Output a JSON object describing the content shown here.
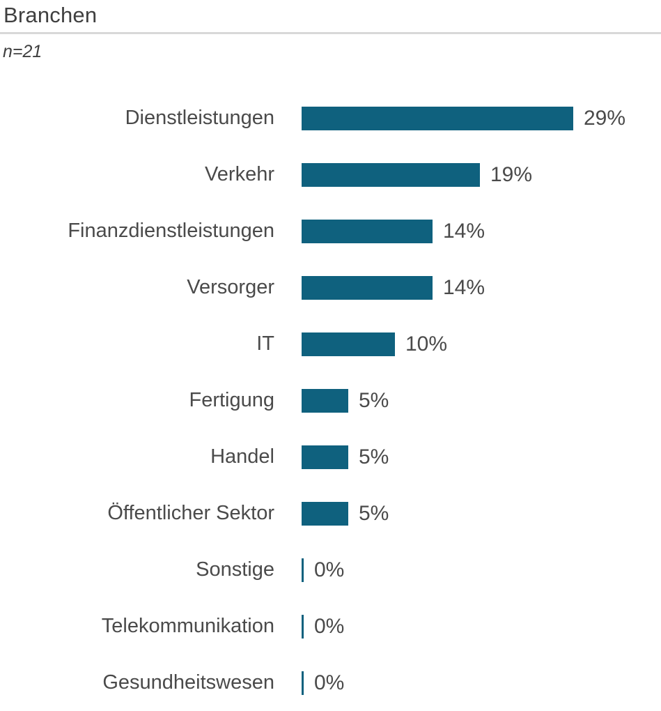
{
  "header": {
    "title": "Branchen",
    "sample_label": "n=21"
  },
  "colors": {
    "bar": "#0f617e",
    "divider": "#d8d8d8",
    "text": "#4a4a4a"
  },
  "chart_data": {
    "type": "bar",
    "orientation": "horizontal",
    "title": "Branchen",
    "subtitle": "n=21",
    "categories": [
      "Dienstleistungen",
      "Verkehr",
      "Finanzdienstleistungen",
      "Versorger",
      "IT",
      "Fertigung",
      "Handel",
      "Öffentlicher Sektor",
      "Sonstige",
      "Telekommunikation",
      "Gesundheitswesen"
    ],
    "values": [
      29,
      19,
      14,
      14,
      10,
      5,
      5,
      5,
      0,
      0,
      0
    ],
    "value_suffix": "%",
    "xlabel": "",
    "ylabel": "",
    "xlim": [
      0,
      29
    ],
    "grid": false,
    "legend": false,
    "value_labels": "outside-end"
  }
}
